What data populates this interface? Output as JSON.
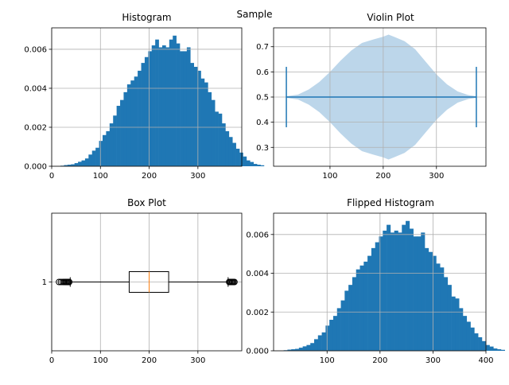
{
  "suptitle": "Sample",
  "colors": {
    "bar": "#1f77b4",
    "violin_body": "#bcd6ea",
    "violin_lines": "#1f77b4",
    "median": "#ff7f0e",
    "grid": "#b0b0b0",
    "box": "#000000"
  },
  "chart_data": [
    {
      "type": "histogram",
      "title": "Histogram",
      "xlabel": "",
      "ylabel": "",
      "xlim": [
        0,
        390
      ],
      "ylim": [
        0,
        0.0071
      ],
      "xticks": [
        0,
        100,
        200,
        300
      ],
      "yticks": [
        0.0,
        0.002,
        0.004,
        0.006
      ],
      "ytick_labels": [
        "0.000",
        "0.002",
        "0.004",
        "0.006"
      ],
      "grid": true,
      "bin_start": 18,
      "bin_width": 7.2,
      "density": [
        3e-05,
        6e-05,
        8e-05,
        0.0001,
        0.00016,
        0.00023,
        0.0003,
        0.0004,
        0.0006,
        0.0008,
        0.00095,
        0.0013,
        0.0016,
        0.0018,
        0.0022,
        0.0026,
        0.0031,
        0.0034,
        0.0038,
        0.0042,
        0.0044,
        0.0046,
        0.0049,
        0.0053,
        0.0056,
        0.0059,
        0.0062,
        0.0065,
        0.0061,
        0.0062,
        0.0061,
        0.0065,
        0.0067,
        0.0063,
        0.0059,
        0.0059,
        0.0061,
        0.0053,
        0.0051,
        0.0049,
        0.0045,
        0.0043,
        0.0038,
        0.0034,
        0.0028,
        0.0027,
        0.0022,
        0.0018,
        0.0015,
        0.0012,
        0.0009,
        0.0007,
        0.0005,
        0.0003,
        0.00022,
        0.00012,
        8e-05,
        5e-05
      ]
    },
    {
      "type": "violin",
      "title": "Violin Plot",
      "xlabel": "",
      "ylabel": "",
      "orientation": "horizontal",
      "xlim": [
        -6,
        393
      ],
      "ylim": [
        0.225,
        0.775
      ],
      "xticks": [
        100,
        200,
        300
      ],
      "yticks": [
        0.3,
        0.4,
        0.5,
        0.6,
        0.7
      ],
      "ytick_labels": [
        "0.3",
        "0.4",
        "0.5",
        "0.6",
        "0.7"
      ],
      "grid": true,
      "position": 0.5,
      "min": 18,
      "max": 375,
      "extrema_half_height": 0.12,
      "profile": [
        [
          18,
          0.003
        ],
        [
          40,
          0.01
        ],
        [
          60,
          0.03
        ],
        [
          80,
          0.06
        ],
        [
          100,
          0.1
        ],
        [
          120,
          0.145
        ],
        [
          140,
          0.185
        ],
        [
          160,
          0.215
        ],
        [
          180,
          0.228
        ],
        [
          200,
          0.24
        ],
        [
          210,
          0.248
        ],
        [
          220,
          0.24
        ],
        [
          240,
          0.222
        ],
        [
          260,
          0.19
        ],
        [
          280,
          0.14
        ],
        [
          300,
          0.09
        ],
        [
          320,
          0.05
        ],
        [
          340,
          0.022
        ],
        [
          360,
          0.008
        ],
        [
          375,
          0.003
        ]
      ]
    },
    {
      "type": "box",
      "title": "Box Plot",
      "xlabel": "",
      "ylabel": "",
      "orientation": "horizontal",
      "xlim": [
        0,
        390
      ],
      "xticks": [
        0,
        100,
        200,
        300
      ],
      "yticks": [
        1
      ],
      "ytick_labels": [
        "1"
      ],
      "grid": true,
      "q1": 159,
      "median": 200,
      "q3": 240,
      "whisker_low": 38,
      "whisker_high": 362,
      "fliers": [
        15,
        19,
        23,
        26,
        28,
        30,
        31,
        33,
        35,
        36,
        364,
        366,
        368,
        370,
        371,
        373,
        375
      ]
    },
    {
      "type": "histogram",
      "title": "Flipped Histogram",
      "xlabel": "",
      "ylabel": "",
      "xlim": [
        -1,
        400
      ],
      "ylim": [
        0,
        0.0071
      ],
      "xticks": [
        100,
        200,
        300,
        400
      ],
      "yticks": [
        0.0,
        0.002,
        0.004,
        0.006
      ],
      "ytick_labels": [
        "0.000",
        "0.002",
        "0.004",
        "0.006"
      ],
      "grid": true,
      "bin_start": 18,
      "bin_width": 7.2,
      "density": [
        3e-05,
        6e-05,
        8e-05,
        0.0001,
        0.00016,
        0.00023,
        0.0003,
        0.0004,
        0.0006,
        0.0008,
        0.00095,
        0.0013,
        0.0016,
        0.0018,
        0.0022,
        0.0026,
        0.0031,
        0.0034,
        0.0038,
        0.0042,
        0.0044,
        0.0046,
        0.0049,
        0.0053,
        0.0056,
        0.0059,
        0.0062,
        0.0065,
        0.0061,
        0.0062,
        0.0061,
        0.0065,
        0.0067,
        0.0063,
        0.0059,
        0.0059,
        0.0061,
        0.0053,
        0.0051,
        0.0049,
        0.0045,
        0.0043,
        0.0038,
        0.0034,
        0.0028,
        0.0027,
        0.0022,
        0.0018,
        0.0015,
        0.0012,
        0.0009,
        0.0007,
        0.0005,
        0.0003,
        0.00022,
        0.00012,
        8e-05,
        5e-05
      ]
    }
  ]
}
